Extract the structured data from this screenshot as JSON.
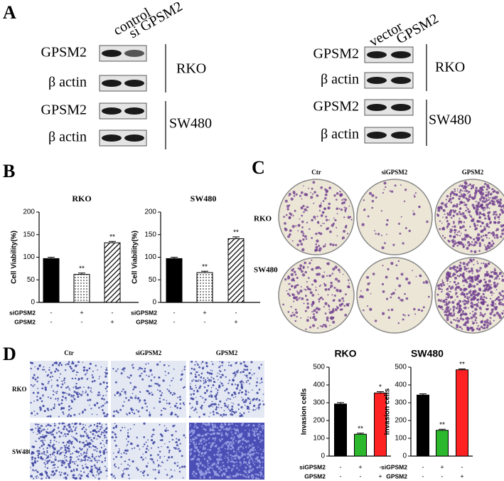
{
  "panel_labels": [
    "A",
    "B",
    "C",
    "D"
  ],
  "blots": {
    "left": {
      "columns": [
        "control",
        "si GPSM2"
      ],
      "rows": [
        "GPSM2",
        "β actin",
        "GPSM2",
        "β actin"
      ],
      "groups": [
        "RKO",
        "SW480"
      ]
    },
    "right": {
      "columns": [
        "vector",
        "GPSM2"
      ],
      "rows": [
        "GPSM2",
        "β actin",
        "GPSM2",
        "β actin"
      ],
      "groups": [
        "RKO",
        "SW480"
      ]
    }
  },
  "colony": {
    "columns": [
      "Ctr",
      "siGPSM2",
      "GPSM2"
    ],
    "rows": [
      "RKO",
      "SW480"
    ]
  },
  "invasion": {
    "columns": [
      "Ctr",
      "siGPSM2",
      "GPSM2"
    ],
    "rows": [
      "RKO",
      "SW480"
    ]
  },
  "chart_data": [
    {
      "type": "bar",
      "title": "RKO",
      "y_label": "Cell Viability(%)",
      "ylim": [
        0,
        200
      ],
      "yticks": [
        0,
        50,
        100,
        150,
        200
      ],
      "conditions": [
        {
          "name": "siGPSM2",
          "signs": [
            "-",
            "+",
            "-"
          ]
        },
        {
          "name": "GPSM2",
          "signs": [
            "-",
            "-",
            "+"
          ]
        }
      ],
      "values": [
        97,
        62,
        132
      ],
      "errors": [
        3,
        3,
        3
      ],
      "annotations": [
        null,
        "**",
        "**"
      ],
      "colors": [
        "#000000",
        "#ffffff",
        "#ffffff"
      ],
      "patterns": [
        "solid",
        "dots",
        "hatch"
      ]
    },
    {
      "type": "bar",
      "title": "SW480",
      "y_label": "Cell Viability(%)",
      "ylim": [
        0,
        200
      ],
      "yticks": [
        0,
        50,
        100,
        150,
        200
      ],
      "conditions": [
        {
          "name": "siGPSM2",
          "signs": [
            "-",
            "+",
            "-"
          ]
        },
        {
          "name": "GPSM2",
          "signs": [
            "-",
            "-",
            "+"
          ]
        }
      ],
      "values": [
        97,
        66,
        141
      ],
      "errors": [
        3,
        3,
        4
      ],
      "annotations": [
        null,
        "**",
        "**"
      ],
      "colors": [
        "#000000",
        "#ffffff",
        "#ffffff"
      ],
      "patterns": [
        "solid",
        "dots",
        "hatch"
      ]
    },
    {
      "type": "bar",
      "title": "RKO",
      "y_label": "Invasion cells",
      "ylim": [
        0,
        500
      ],
      "yticks": [
        0,
        100,
        200,
        300,
        400,
        500
      ],
      "conditions": [
        {
          "name": "siGPSM2",
          "signs": [
            "-",
            "+",
            "-"
          ]
        },
        {
          "name": "GPSM2",
          "signs": [
            "-",
            "-",
            "+"
          ]
        }
      ],
      "values": [
        293,
        123,
        355
      ],
      "errors": [
        8,
        6,
        7
      ],
      "annotations": [
        null,
        "**",
        "*"
      ],
      "colors": [
        "#000000",
        "#2cb82c",
        "#ff2222"
      ],
      "patterns": [
        "solid",
        "solid",
        "solid"
      ]
    },
    {
      "type": "bar",
      "title": "SW480",
      "y_label": "Invasion cells",
      "ylim": [
        0,
        500
      ],
      "yticks": [
        0,
        100,
        200,
        300,
        400,
        500
      ],
      "conditions": [
        {
          "name": "siGPSM2",
          "signs": [
            "-",
            "+",
            "-"
          ]
        },
        {
          "name": "GPSM2",
          "signs": [
            "-",
            "-",
            "+"
          ]
        }
      ],
      "values": [
        343,
        145,
        485
      ],
      "errors": [
        7,
        6,
        5
      ],
      "annotations": [
        null,
        "**",
        "**"
      ],
      "colors": [
        "#000000",
        "#2cb82c",
        "#ff2222"
      ],
      "patterns": [
        "solid",
        "solid",
        "solid"
      ]
    }
  ]
}
